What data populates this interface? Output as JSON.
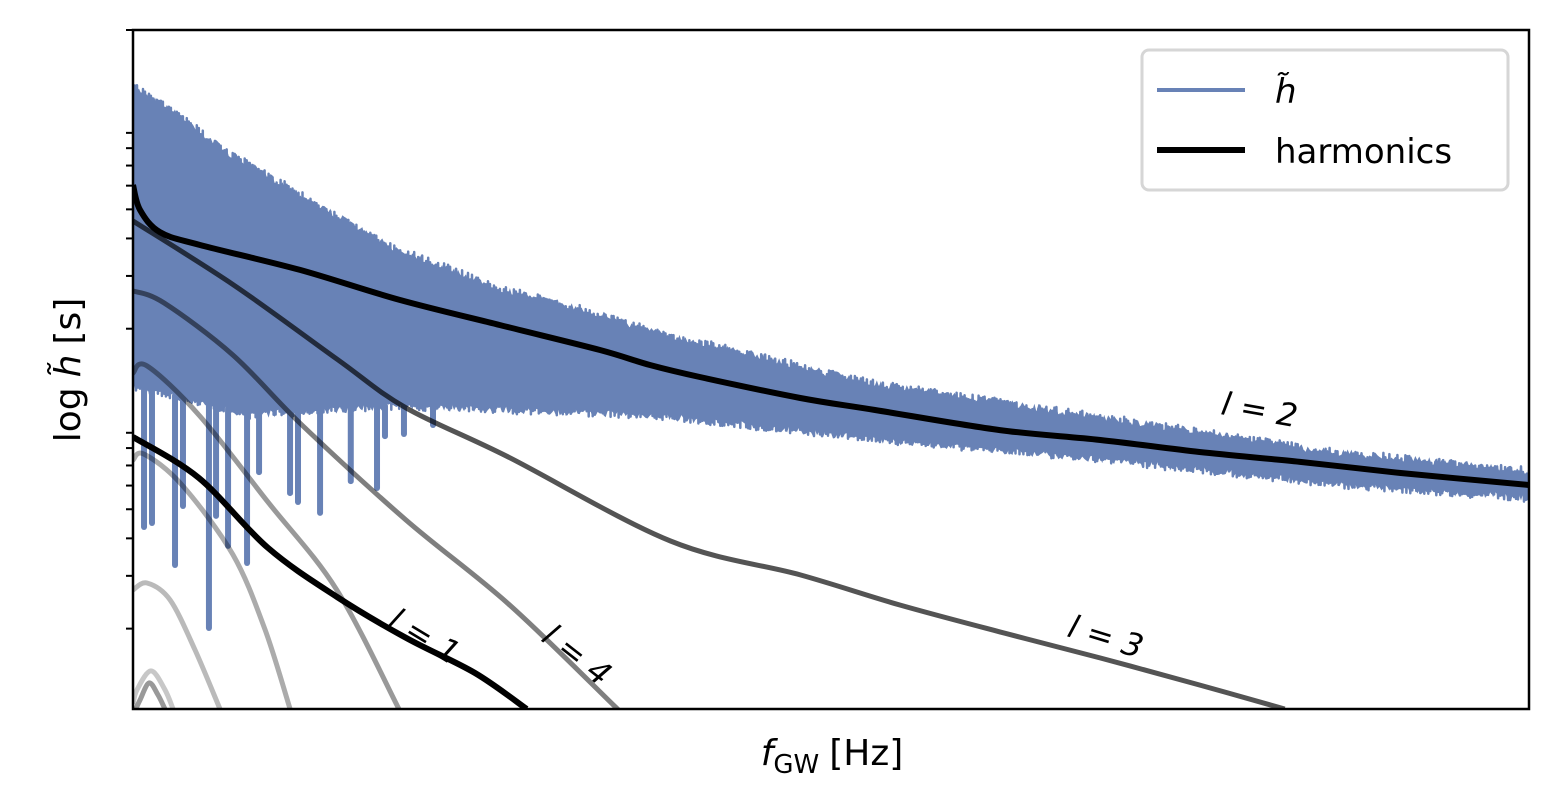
{
  "chart_data": {
    "type": "line",
    "title": "",
    "xlabel": {
      "symbol": "f",
      "subscript": "GW",
      "unit": "[Hz]"
    },
    "ylabel": {
      "prefix": "log",
      "symbol": "h̃",
      "unit": "[s]"
    },
    "xscale": "linear",
    "yscale": "log",
    "xlim": [
      0,
      100
    ],
    "ylim_log10": [
      -0.967,
      1.297
    ],
    "x_ticks": [],
    "y_tick_labels": [],
    "y_minor_ticks_log10": [
      -0.699,
      -0.523,
      -0.398,
      -0.301,
      -0.222,
      -0.155,
      -0.097,
      -0.046,
      0.301,
      0.477,
      0.602,
      0.699,
      0.778,
      0.845,
      0.903,
      0.954,
      1.301
    ],
    "grid": false,
    "legend": {
      "placement": "top-right",
      "entries": [
        {
          "label": "h̃",
          "color": "#6882b6"
        },
        {
          "label": "harmonics",
          "color": "#000000"
        }
      ]
    },
    "signal": {
      "name": "h̃",
      "color": "#6882b6",
      "upper_envelope": [
        [
          0,
          1.123
        ],
        [
          3.37,
          1.023
        ],
        [
          6.95,
          0.897
        ],
        [
          11.96,
          0.763
        ],
        [
          18.05,
          0.597
        ],
        [
          26.29,
          0.447
        ],
        [
          33.45,
          0.363
        ],
        [
          37.03,
          0.307
        ],
        [
          53.15,
          0.13
        ],
        [
          69.2,
          0.02
        ],
        [
          85.3,
          -0.093
        ],
        [
          100,
          -0.16
        ]
      ],
      "lower_envelope": [
        [
          0,
          0.097
        ],
        [
          8.38,
          0.0
        ],
        [
          19.13,
          0.03
        ],
        [
          37.03,
          0.0
        ],
        [
          53.15,
          -0.08
        ],
        [
          69.2,
          -0.147
        ],
        [
          85.3,
          -0.227
        ],
        [
          100,
          -0.277
        ]
      ],
      "dips": [
        [
          0.79,
          -0.36
        ],
        [
          1.36,
          -0.347
        ],
        [
          3.01,
          -0.487
        ],
        [
          3.58,
          -0.29
        ],
        [
          5.44,
          -0.697
        ],
        [
          5.95,
          -0.323
        ],
        [
          6.81,
          -0.423
        ],
        [
          8.17,
          -0.48
        ],
        [
          9.03,
          -0.177
        ],
        [
          11.25,
          -0.247
        ],
        [
          11.82,
          -0.277
        ],
        [
          13.4,
          -0.313
        ],
        [
          15.6,
          -0.207
        ],
        [
          17.48,
          -0.23
        ],
        [
          18.05,
          -0.057
        ],
        [
          19.41,
          -0.05
        ],
        [
          21.49,
          -0.02
        ]
      ]
    },
    "series": [
      {
        "name": "l=1",
        "label": "l = 1",
        "opacity": 1.0,
        "points": [
          [
            0,
            -0.06
          ],
          [
            4.73,
            -0.197
          ],
          [
            9.67,
            -0.43
          ],
          [
            14.6,
            -0.593
          ],
          [
            19.56,
            -0.73
          ],
          [
            24.5,
            -0.847
          ],
          [
            28.2,
            -0.967
          ]
        ]
      },
      {
        "name": "l=2",
        "label": "l = 2",
        "opacity": 1.0,
        "points": [
          [
            0,
            0.78
          ],
          [
            0.5,
            0.697
          ],
          [
            1.93,
            0.623
          ],
          [
            4.8,
            0.58
          ],
          [
            11.96,
            0.497
          ],
          [
            19.1,
            0.397
          ],
          [
            26.3,
            0.313
          ],
          [
            33.45,
            0.23
          ],
          [
            37.03,
            0.18
          ],
          [
            40.6,
            0.14
          ],
          [
            47.8,
            0.07
          ],
          [
            53.15,
            0.03
          ],
          [
            62.1,
            -0.037
          ],
          [
            69.3,
            -0.07
          ],
          [
            76.4,
            -0.11
          ],
          [
            83.6,
            -0.143
          ],
          [
            90.8,
            -0.18
          ],
          [
            100,
            -0.22
          ]
        ]
      },
      {
        "name": "l=3",
        "label": "l = 3",
        "opacity": 0.67,
        "points": [
          [
            0,
            0.66
          ],
          [
            7.2,
            0.447
          ],
          [
            14.6,
            0.2
          ],
          [
            19.56,
            0.037
          ],
          [
            26.9,
            -0.127
          ],
          [
            38.5,
            -0.407
          ],
          [
            47.8,
            -0.52
          ],
          [
            54.9,
            -0.62
          ],
          [
            62.1,
            -0.71
          ],
          [
            69.3,
            -0.797
          ],
          [
            76.4,
            -0.887
          ],
          [
            82.5,
            -0.967
          ]
        ]
      },
      {
        "name": "l=4",
        "label": "l = 4",
        "opacity": 0.5,
        "points": [
          [
            0,
            0.427
          ],
          [
            2.22,
            0.387
          ],
          [
            7.16,
            0.213
          ],
          [
            12.1,
            -0.02
          ],
          [
            19.56,
            -0.337
          ],
          [
            26.9,
            -0.617
          ],
          [
            34.4,
            -0.953
          ],
          [
            34.7,
            -0.967
          ]
        ]
      },
      {
        "name": "l=5",
        "opacity": 0.4,
        "points": [
          [
            0,
            0.153
          ],
          [
            1.0,
            0.177
          ],
          [
            4.73,
            0.013
          ],
          [
            9.67,
            -0.277
          ],
          [
            14.6,
            -0.57
          ],
          [
            19.05,
            -0.967
          ]
        ]
      },
      {
        "name": "l=6",
        "opacity": 0.33,
        "points": [
          [
            0,
            -0.137
          ],
          [
            0.79,
            -0.117
          ],
          [
            3.51,
            -0.22
          ],
          [
            7.16,
            -0.453
          ],
          [
            9.46,
            -0.703
          ],
          [
            11.25,
            -0.967
          ]
        ]
      },
      {
        "name": "l=7",
        "opacity": 0.27,
        "points": [
          [
            0,
            -0.57
          ],
          [
            1.0,
            -0.547
          ],
          [
            2.65,
            -0.603
          ],
          [
            4.44,
            -0.77
          ],
          [
            6.23,
            -0.967
          ]
        ]
      },
      {
        "name": "l=8",
        "opacity": 0.22,
        "points": [
          [
            0,
            -0.95
          ],
          [
            0.29,
            -0.903
          ],
          [
            1.29,
            -0.84
          ],
          [
            2.29,
            -0.903
          ],
          [
            2.87,
            -0.967
          ]
        ]
      },
      {
        "name": "l=9",
        "opacity": 0.4,
        "points": [
          [
            0.2,
            -0.967
          ],
          [
            0.5,
            -0.937
          ],
          [
            1.15,
            -0.88
          ],
          [
            1.79,
            -0.92
          ],
          [
            2.29,
            -0.967
          ]
        ]
      }
    ],
    "annotations": [
      {
        "text": "l = 1",
        "series": "l=1"
      },
      {
        "text": "l = 2",
        "series": "l=2"
      },
      {
        "text": "l = 3",
        "series": "l=3"
      },
      {
        "text": "l = 4",
        "series": "l=4"
      }
    ]
  }
}
